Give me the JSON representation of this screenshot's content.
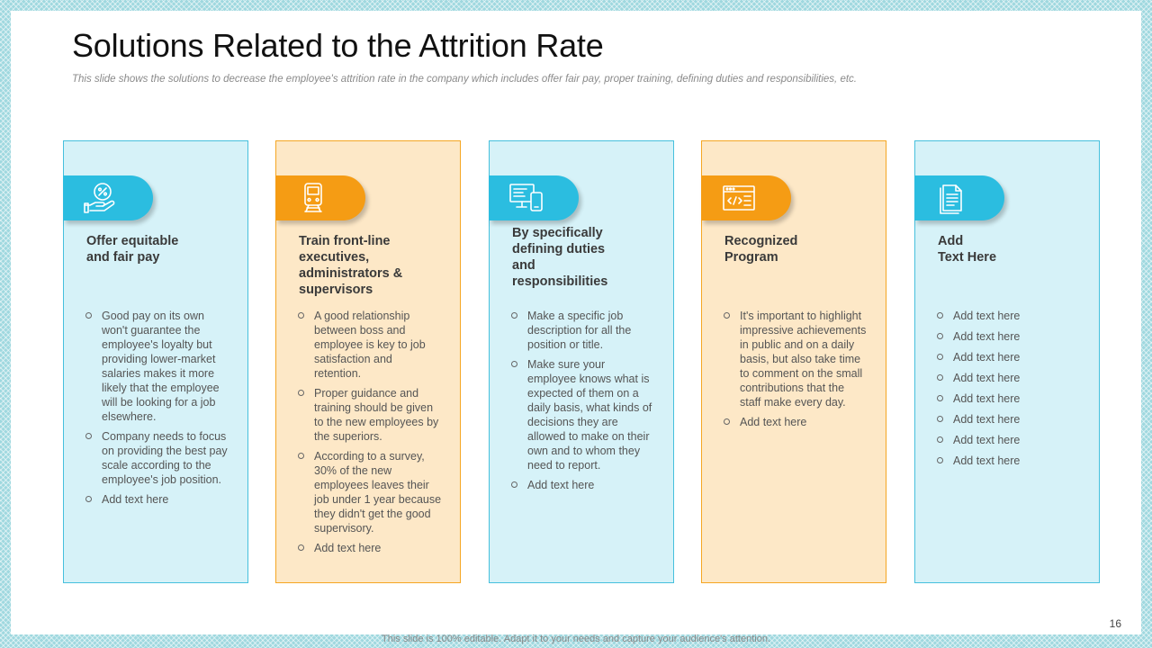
{
  "title": "Solutions Related to the Attrition Rate",
  "subtitle": "This slide shows the solutions to decrease the employee's attrition rate in the company which includes offer fair pay, proper training, defining duties and responsibilities, etc.",
  "colors": {
    "blue_fill": "#d6f2f8",
    "blue_accent": "#2bbde0",
    "orange_fill": "#fde8c7",
    "orange_accent": "#f59c14"
  },
  "cards": [
    {
      "icon": "percent-hand-icon",
      "heading_lines": [
        "Offer equitable",
        "and fair pay"
      ],
      "bullets": [
        "Good pay on its own won't guarantee the employee's loyalty but providing lower-market salaries makes it more likely that the employee will be looking for a job elsewhere.",
        "Company needs to focus on providing the best pay scale according to the employee's job position.",
        "Add text here"
      ]
    },
    {
      "icon": "train-icon",
      "heading_lines": [
        "Train front-line",
        "executives,",
        "administrators &",
        "supervisors"
      ],
      "bullets": [
        "A good relationship between boss and employee is key to job satisfaction and retention.",
        "Proper guidance and training should be given to the new employees by the superiors.",
        "According to a survey, 30% of the new employees leaves their job under 1 year because they didn't get the good supervisory.",
        "Add text here"
      ]
    },
    {
      "icon": "computer-devices-icon",
      "heading_lines": [
        "By specifically",
        "defining duties",
        "and",
        "responsibilities"
      ],
      "bullets": [
        "Make a specific job description for all the position or title.",
        "Make sure your employee knows what is expected of them on a daily basis, what kinds of decisions they are allowed to make on their own and to whom they need to report.",
        "Add text here"
      ]
    },
    {
      "icon": "code-window-icon",
      "heading_lines": [
        "Recognized",
        "Program"
      ],
      "bullets": [
        "It's important to highlight impressive achievements in public and on a daily basis, but also take time to comment on the small contributions that the staff make every day.",
        "Add text here"
      ]
    },
    {
      "icon": "document-icon",
      "heading_lines": [
        "Add",
        "Text Here"
      ],
      "bullets": [
        "Add text here",
        "Add text here",
        "Add text here",
        "Add text here",
        "Add text here",
        "Add text here",
        "Add text here",
        "Add text here"
      ]
    }
  ],
  "page_number": "16",
  "footer": "This slide is 100% editable. Adapt it to your needs and capture your audience's attention."
}
